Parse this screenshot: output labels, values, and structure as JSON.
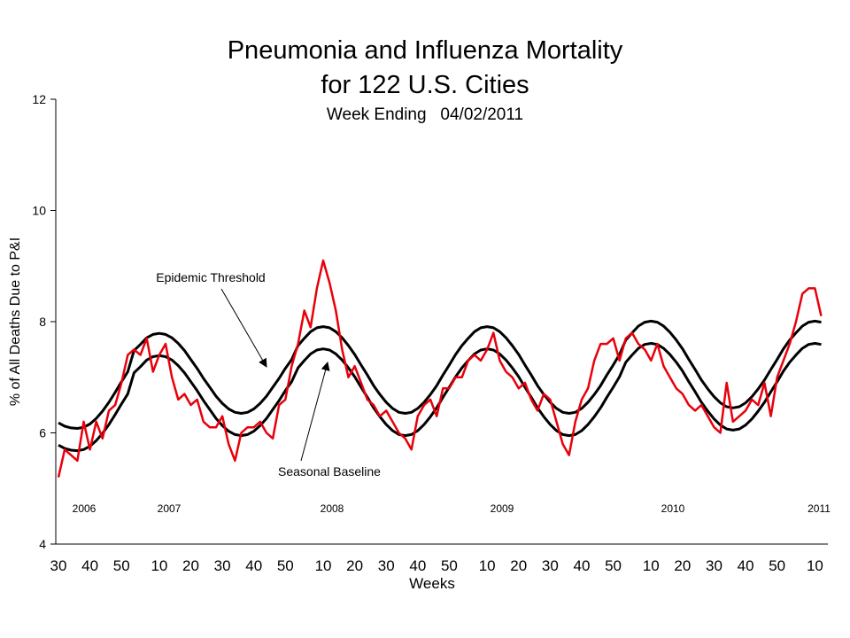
{
  "chart_data": {
    "type": "line",
    "title": "Pneumonia and Influenza Mortality",
    "title_line2": "for 122 U.S. Cities",
    "subtitle": "Week Ending   04/02/2011",
    "y_label": "% of All Deaths Due to P&I",
    "x_label": "Weeks",
    "year_labels": [
      "2006",
      "2007",
      "2008",
      "2009",
      "2010",
      "2011"
    ],
    "categories": [
      "30",
      null,
      null,
      null,
      null,
      "40",
      null,
      null,
      null,
      null,
      "50",
      null,
      null,
      null,
      null,
      null,
      "10",
      null,
      null,
      null,
      null,
      "20",
      null,
      null,
      null,
      null,
      "30",
      null,
      null,
      null,
      null,
      "40",
      null,
      null,
      null,
      null,
      "50",
      null,
      null,
      null,
      null,
      null,
      "10",
      null,
      null,
      null,
      null,
      "20",
      null,
      null,
      null,
      null,
      "30",
      null,
      null,
      null,
      null,
      "40",
      null,
      null,
      null,
      null,
      "50",
      null,
      null,
      null,
      null,
      null,
      "10",
      null,
      null,
      null,
      null,
      "20",
      null,
      null,
      null,
      null,
      "30",
      null,
      null,
      null,
      null,
      "40",
      null,
      null,
      null,
      null,
      "50",
      null,
      null,
      null,
      null,
      null,
      "10",
      null,
      null,
      null,
      null,
      "20",
      null,
      null,
      null,
      null,
      "30",
      null,
      null,
      null,
      null,
      "40",
      null,
      null,
      null,
      null,
      "50",
      null,
      null,
      null,
      null,
      null,
      "10",
      null
    ],
    "series": [
      {
        "color": "#e8000b",
        "values": [
          5.2,
          5.7,
          5.6,
          5.5,
          6.2,
          5.7,
          6.2,
          5.9,
          6.4,
          6.5,
          6.9,
          7.4,
          7.5,
          7.4,
          7.7,
          7.1,
          7.4,
          7.6,
          7.0,
          6.6,
          6.7,
          6.5,
          6.6,
          6.2,
          6.1,
          6.1,
          6.3,
          5.8,
          5.5,
          6.0,
          6.1,
          6.1,
          6.2,
          6.0,
          5.9,
          6.5,
          6.6,
          7.2,
          7.6,
          8.2,
          7.9,
          8.6,
          9.1,
          8.7,
          8.2,
          7.5,
          7.0,
          7.2,
          6.9,
          6.6,
          6.5,
          6.3,
          6.4,
          6.2,
          6.0,
          5.9,
          5.7,
          6.3,
          6.5,
          6.6,
          6.3,
          6.8,
          6.8,
          7.0,
          7.0,
          7.3,
          7.4,
          7.3,
          7.5,
          7.8,
          7.3,
          7.1,
          7.0,
          6.8,
          6.9,
          6.6,
          6.4,
          6.7,
          6.6,
          6.2,
          5.8,
          5.6,
          6.2,
          6.6,
          6.8,
          7.3,
          7.6,
          7.6,
          7.7,
          7.3,
          7.7,
          7.8,
          7.6,
          7.5,
          7.3,
          7.6,
          7.2,
          7.0,
          6.8,
          6.7,
          6.5,
          6.4,
          6.5,
          6.3,
          6.1,
          6.0,
          6.9,
          6.2,
          6.3,
          6.4,
          6.6,
          6.5,
          6.9,
          6.3,
          7.0,
          7.3,
          7.6,
          8.0,
          8.5,
          8.6,
          8.6,
          8.1
        ]
      },
      {
        "name": "Epidemic Threshold",
        "color": "#000000",
        "values": [
          6.18,
          6.12,
          6.09,
          6.08,
          6.1,
          6.16,
          6.26,
          6.39,
          6.55,
          6.73,
          6.92,
          7.1,
          7.48,
          7.59,
          7.71,
          7.77,
          7.79,
          7.77,
          7.71,
          7.61,
          7.48,
          7.32,
          7.16,
          6.98,
          6.82,
          6.66,
          6.53,
          6.43,
          6.37,
          6.35,
          6.37,
          6.43,
          6.53,
          6.66,
          6.82,
          6.98,
          7.16,
          7.32,
          7.57,
          7.7,
          7.82,
          7.89,
          7.91,
          7.89,
          7.82,
          7.71,
          7.57,
          7.41,
          7.22,
          7.04,
          6.85,
          6.69,
          6.55,
          6.44,
          6.37,
          6.35,
          6.37,
          6.44,
          6.55,
          6.69,
          6.85,
          7.04,
          7.22,
          7.41,
          7.57,
          7.7,
          7.82,
          7.89,
          7.91,
          7.89,
          7.82,
          7.71,
          7.57,
          7.41,
          7.22,
          7.04,
          6.85,
          6.69,
          6.55,
          6.44,
          6.37,
          6.35,
          6.37,
          6.44,
          6.55,
          6.69,
          6.85,
          7.04,
          7.22,
          7.41,
          7.67,
          7.8,
          7.92,
          7.99,
          8.01,
          7.99,
          7.92,
          7.81,
          7.67,
          7.51,
          7.32,
          7.14,
          6.95,
          6.79,
          6.65,
          6.54,
          6.47,
          6.45,
          6.47,
          6.54,
          6.65,
          6.79,
          6.95,
          7.14,
          7.32,
          7.51,
          7.67,
          7.8,
          7.92,
          7.99,
          8.01,
          7.99
        ]
      },
      {
        "name": "Seasonal Baseline",
        "color": "#000000",
        "values": [
          5.78,
          5.72,
          5.69,
          5.68,
          5.7,
          5.76,
          5.86,
          5.99,
          6.15,
          6.33,
          6.52,
          6.7,
          7.08,
          7.19,
          7.31,
          7.37,
          7.39,
          7.37,
          7.31,
          7.21,
          7.08,
          6.92,
          6.76,
          6.58,
          6.42,
          6.26,
          6.13,
          6.03,
          5.97,
          5.95,
          5.97,
          6.03,
          6.13,
          6.26,
          6.42,
          6.58,
          6.76,
          6.92,
          7.17,
          7.3,
          7.42,
          7.49,
          7.51,
          7.49,
          7.42,
          7.31,
          7.17,
          7.01,
          6.82,
          6.64,
          6.45,
          6.29,
          6.15,
          6.04,
          5.97,
          5.95,
          5.97,
          6.04,
          6.15,
          6.29,
          6.45,
          6.64,
          6.82,
          7.01,
          7.17,
          7.3,
          7.42,
          7.49,
          7.51,
          7.49,
          7.42,
          7.31,
          7.17,
          7.01,
          6.82,
          6.64,
          6.45,
          6.29,
          6.15,
          6.04,
          5.97,
          5.95,
          5.97,
          6.04,
          6.15,
          6.29,
          6.45,
          6.64,
          6.82,
          7.01,
          7.27,
          7.4,
          7.52,
          7.59,
          7.61,
          7.59,
          7.52,
          7.41,
          7.27,
          7.11,
          6.92,
          6.74,
          6.55,
          6.39,
          6.25,
          6.14,
          6.07,
          6.05,
          6.07,
          6.14,
          6.25,
          6.39,
          6.55,
          6.74,
          6.92,
          7.11,
          7.27,
          7.4,
          7.52,
          7.59,
          7.61,
          7.59
        ]
      }
    ],
    "ylim": [
      4,
      12
    ],
    "yticks": [
      4,
      6,
      8,
      10,
      12
    ]
  }
}
